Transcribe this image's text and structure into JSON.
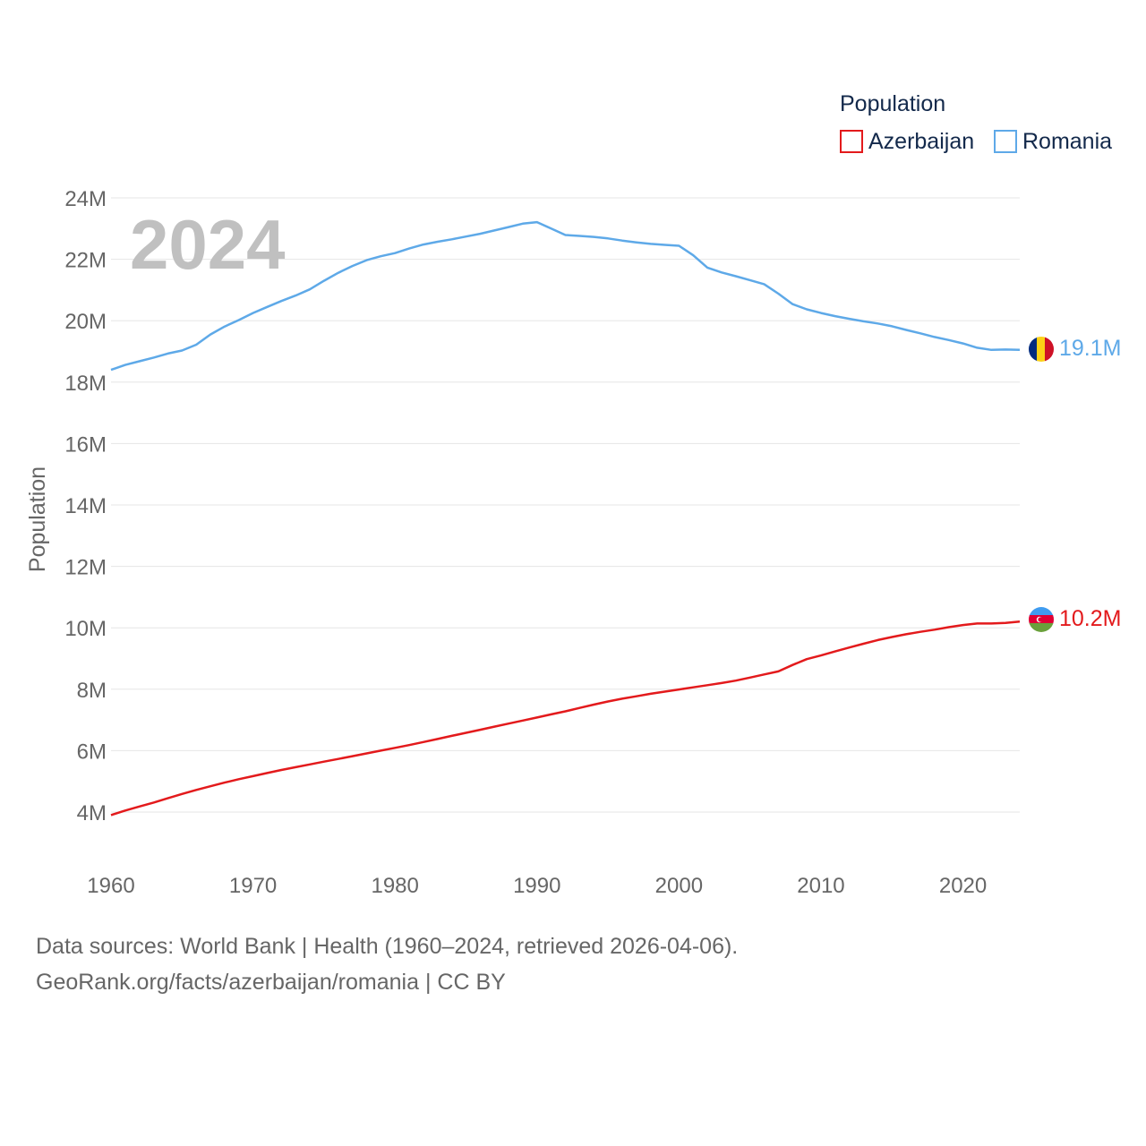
{
  "chart_data": {
    "type": "line",
    "year_watermark": "2024",
    "ylabel": "Population",
    "legend_title": "Population",
    "ylim": [
      3000000,
      24000000
    ],
    "xlim": [
      1960,
      2024
    ],
    "y_ticks": [
      {
        "value": 4000000,
        "label": "4M"
      },
      {
        "value": 6000000,
        "label": "6M"
      },
      {
        "value": 8000000,
        "label": "8M"
      },
      {
        "value": 10000000,
        "label": "10M"
      },
      {
        "value": 12000000,
        "label": "12M"
      },
      {
        "value": 14000000,
        "label": "14M"
      },
      {
        "value": 16000000,
        "label": "16M"
      },
      {
        "value": 18000000,
        "label": "18M"
      },
      {
        "value": 20000000,
        "label": "20M"
      },
      {
        "value": 22000000,
        "label": "22M"
      },
      {
        "value": 24000000,
        "label": "24M"
      }
    ],
    "x_ticks": [
      {
        "value": 1960,
        "label": "1960"
      },
      {
        "value": 1970,
        "label": "1970"
      },
      {
        "value": 1980,
        "label": "1980"
      },
      {
        "value": 1990,
        "label": "1990"
      },
      {
        "value": 2000,
        "label": "2000"
      },
      {
        "value": 2010,
        "label": "2010"
      },
      {
        "value": 2020,
        "label": "2020"
      }
    ],
    "x": [
      1960,
      1961,
      1962,
      1963,
      1964,
      1965,
      1966,
      1967,
      1968,
      1969,
      1970,
      1971,
      1972,
      1973,
      1974,
      1975,
      1976,
      1977,
      1978,
      1979,
      1980,
      1981,
      1982,
      1983,
      1984,
      1985,
      1986,
      1987,
      1988,
      1989,
      1990,
      1991,
      1992,
      1993,
      1994,
      1995,
      1996,
      1997,
      1998,
      1999,
      2000,
      2001,
      2002,
      2003,
      2004,
      2005,
      2006,
      2007,
      2008,
      2009,
      2010,
      2011,
      2012,
      2013,
      2014,
      2015,
      2016,
      2017,
      2018,
      2019,
      2020,
      2021,
      2022,
      2023,
      2024
    ],
    "series": [
      {
        "name": "Azerbaijan",
        "color": "#e31a1c",
        "flag": "azerbaijan-flag",
        "end_label": "10.2M",
        "values": [
          3900000,
          4050000,
          4180000,
          4310000,
          4450000,
          4590000,
          4720000,
          4840000,
          4960000,
          5070000,
          5170000,
          5270000,
          5370000,
          5460000,
          5550000,
          5640000,
          5730000,
          5820000,
          5910000,
          6000000,
          6090000,
          6180000,
          6280000,
          6380000,
          6480000,
          6580000,
          6680000,
          6780000,
          6880000,
          6980000,
          7080000,
          7180000,
          7280000,
          7390000,
          7500000,
          7600000,
          7690000,
          7770000,
          7850000,
          7920000,
          7990000,
          8060000,
          8130000,
          8200000,
          8280000,
          8380000,
          8480000,
          8580000,
          8790000,
          8980000,
          9100000,
          9230000,
          9360000,
          9480000,
          9600000,
          9700000,
          9790000,
          9870000,
          9940000,
          10020000,
          10090000,
          10140000,
          10140000,
          10160000,
          10200000
        ]
      },
      {
        "name": "Romania",
        "color": "#5ea9e8",
        "flag": "romania-flag",
        "end_label": "19.1M",
        "values": [
          18400000,
          18560000,
          18680000,
          18800000,
          18930000,
          19030000,
          19220000,
          19550000,
          19810000,
          20020000,
          20250000,
          20450000,
          20640000,
          20820000,
          21020000,
          21300000,
          21560000,
          21780000,
          21970000,
          22100000,
          22200000,
          22350000,
          22480000,
          22570000,
          22650000,
          22740000,
          22830000,
          22940000,
          23050000,
          23160000,
          23210000,
          23000000,
          22790000,
          22760000,
          22730000,
          22680000,
          22610000,
          22550000,
          22500000,
          22470000,
          22440000,
          22130000,
          21730000,
          21570000,
          21450000,
          21320000,
          21190000,
          20880000,
          20540000,
          20370000,
          20250000,
          20150000,
          20060000,
          19980000,
          19910000,
          19820000,
          19700000,
          19590000,
          19470000,
          19370000,
          19260000,
          19120000,
          19050000,
          19060000,
          19050000
        ]
      }
    ]
  },
  "footer": {
    "line1": "Data sources: World Bank | Health (1960–2024, retrieved 2026-04-06).",
    "line2": "GeoRank.org/facts/azerbaijan/romania | CC BY"
  }
}
